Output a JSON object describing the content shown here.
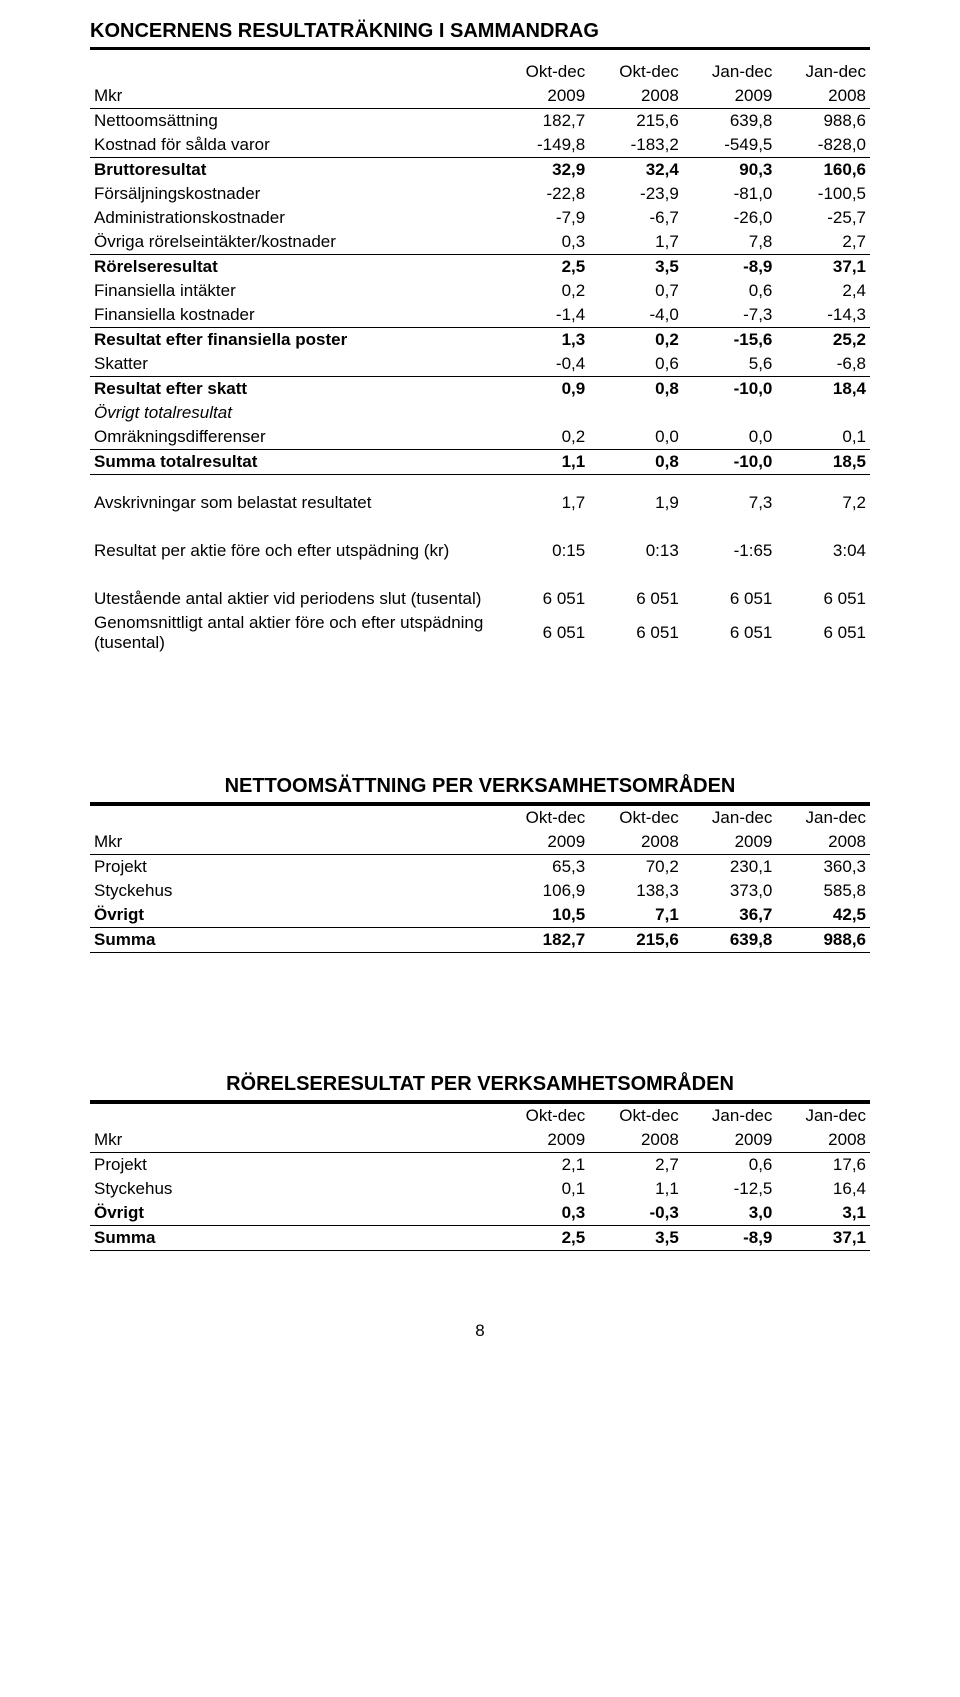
{
  "section1": {
    "title": "KONCERNENS RESULTATRÄKNING I SAMMANDRAG",
    "header": {
      "label": "Mkr",
      "c1a": "Okt-dec",
      "c1b": "2009",
      "c2a": "Okt-dec",
      "c2b": "2008",
      "c3a": "Jan-dec",
      "c3b": "2009",
      "c4a": "Jan-dec",
      "c4b": "2008"
    },
    "rows": [
      {
        "label": "Nettoomsättning",
        "v": [
          "182,7",
          "215,6",
          "639,8",
          "988,6"
        ],
        "cls": ""
      },
      {
        "label": "Kostnad för sålda varor",
        "v": [
          "-149,8",
          "-183,2",
          "-549,5",
          "-828,0"
        ],
        "cls": ""
      },
      {
        "label": "Bruttoresultat",
        "v": [
          "32,9",
          "32,4",
          "90,3",
          "160,6"
        ],
        "cls": "bold top-border"
      },
      {
        "label": "Försäljningskostnader",
        "v": [
          "-22,8",
          "-23,9",
          "-81,0",
          "-100,5"
        ],
        "cls": ""
      },
      {
        "label": "Administrationskostnader",
        "v": [
          "-7,9",
          "-6,7",
          "-26,0",
          "-25,7"
        ],
        "cls": ""
      },
      {
        "label": "Övriga rörelseintäkter/kostnader",
        "v": [
          "0,3",
          "1,7",
          "7,8",
          "2,7"
        ],
        "cls": ""
      },
      {
        "label": "Rörelseresultat",
        "v": [
          "2,5",
          "3,5",
          "-8,9",
          "37,1"
        ],
        "cls": "bold top-border"
      },
      {
        "label": "Finansiella intäkter",
        "v": [
          "0,2",
          "0,7",
          "0,6",
          "2,4"
        ],
        "cls": ""
      },
      {
        "label": "Finansiella kostnader",
        "v": [
          "-1,4",
          "-4,0",
          "-7,3",
          "-14,3"
        ],
        "cls": ""
      },
      {
        "label": "Resultat efter finansiella poster",
        "v": [
          "1,3",
          "0,2",
          "-15,6",
          "25,2"
        ],
        "cls": "bold top-border"
      },
      {
        "label": "Skatter",
        "v": [
          "-0,4",
          "0,6",
          "5,6",
          "-6,8"
        ],
        "cls": ""
      },
      {
        "label": "Resultat efter skatt",
        "v": [
          "0,9",
          "0,8",
          "-10,0",
          "18,4"
        ],
        "cls": "bold top-border"
      },
      {
        "label": "Övrigt totalresultat",
        "v": [
          "",
          "",
          "",
          ""
        ],
        "cls": "italic"
      },
      {
        "label": "Omräkningsdifferenser",
        "v": [
          "0,2",
          "0,0",
          "0,0",
          "0,1"
        ],
        "cls": ""
      },
      {
        "label": "Summa totalresultat",
        "v": [
          "1,1",
          "0,8",
          "-10,0",
          "18,5"
        ],
        "cls": "bold top-border bottom-border"
      }
    ],
    "extra": [
      {
        "label": "Avskrivningar som belastat resultatet",
        "v": [
          "1,7",
          "1,9",
          "7,3",
          "7,2"
        ],
        "cls": ""
      },
      {
        "label": "Resultat per aktie före och efter utspädning (kr)",
        "v": [
          "0:15",
          "0:13",
          "-1:65",
          "3:04"
        ],
        "cls": ""
      },
      {
        "label": "Utestående antal aktier vid periodens slut (tusental)",
        "v": [
          "6 051",
          "6 051",
          "6 051",
          "6 051"
        ],
        "cls": ""
      },
      {
        "label": "Genomsnittligt antal aktier före och efter utspädning (tusental)",
        "v": [
          "6 051",
          "6 051",
          "6 051",
          "6 051"
        ],
        "cls": ""
      }
    ]
  },
  "section2": {
    "title": "NETTOOMSÄTTNING PER VERKSAMHETSOMRÅDEN",
    "header": {
      "label": "Mkr",
      "c1a": "Okt-dec",
      "c1b": "2009",
      "c2a": "Okt-dec",
      "c2b": "2008",
      "c3a": "Jan-dec",
      "c3b": "2009",
      "c4a": "Jan-dec",
      "c4b": "2008"
    },
    "rows": [
      {
        "label": "Projekt",
        "v": [
          "65,3",
          "70,2",
          "230,1",
          "360,3"
        ],
        "cls": ""
      },
      {
        "label": "Styckehus",
        "v": [
          "106,9",
          "138,3",
          "373,0",
          "585,8"
        ],
        "cls": ""
      },
      {
        "label": "Övrigt",
        "v": [
          "10,5",
          "7,1",
          "36,7",
          "42,5"
        ],
        "cls": "bold"
      },
      {
        "label": "Summa",
        "v": [
          "182,7",
          "215,6",
          "639,8",
          "988,6"
        ],
        "cls": "bold top-border bottom-border"
      }
    ]
  },
  "section3": {
    "title": "RÖRELSERESULTAT PER VERKSAMHETSOMRÅDEN",
    "header": {
      "label": "Mkr",
      "c1a": "Okt-dec",
      "c1b": "2009",
      "c2a": "Okt-dec",
      "c2b": "2008",
      "c3a": "Jan-dec",
      "c3b": "2009",
      "c4a": "Jan-dec",
      "c4b": "2008"
    },
    "rows": [
      {
        "label": "Projekt",
        "v": [
          "2,1",
          "2,7",
          "0,6",
          "17,6"
        ],
        "cls": ""
      },
      {
        "label": "Styckehus",
        "v": [
          "0,1",
          "1,1",
          "-12,5",
          "16,4"
        ],
        "cls": ""
      },
      {
        "label": "Övrigt",
        "v": [
          "0,3",
          "-0,3",
          "3,0",
          "3,1"
        ],
        "cls": "bold"
      },
      {
        "label": "Summa",
        "v": [
          "2,5",
          "3,5",
          "-8,9",
          "37,1"
        ],
        "cls": "bold top-border bottom-border"
      }
    ]
  },
  "pageNumber": "8"
}
